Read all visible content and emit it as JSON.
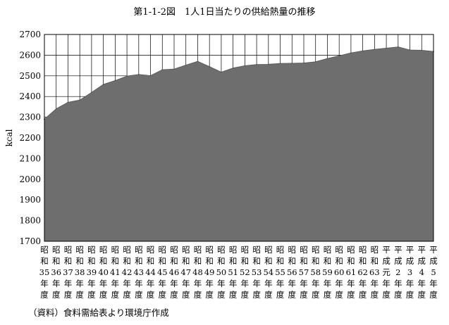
{
  "chart_data": {
    "type": "area",
    "title": "第1-1-2図　1人1日当たりの供給熱量の推移",
    "ylabel": "kcal",
    "xlabel": "",
    "ylim": [
      1700,
      2700
    ],
    "yticks": [
      1700,
      1800,
      1900,
      2000,
      2100,
      2200,
      2300,
      2400,
      2500,
      2600,
      2700
    ],
    "grid": "vertical and horizontal",
    "fill_color": "#6e6e6e",
    "categories": [
      [
        "昭",
        "和",
        "35",
        "年",
        "度"
      ],
      [
        "昭",
        "和",
        "36",
        "年",
        "度"
      ],
      [
        "昭",
        "和",
        "37",
        "年",
        "度"
      ],
      [
        "昭",
        "和",
        "38",
        "年",
        "度"
      ],
      [
        "昭",
        "和",
        "39",
        "年",
        "度"
      ],
      [
        "昭",
        "和",
        "40",
        "年",
        "度"
      ],
      [
        "昭",
        "和",
        "41",
        "年",
        "度"
      ],
      [
        "昭",
        "和",
        "42",
        "年",
        "度"
      ],
      [
        "昭",
        "和",
        "43",
        "年",
        "度"
      ],
      [
        "昭",
        "和",
        "44",
        "年",
        "度"
      ],
      [
        "昭",
        "和",
        "45",
        "年",
        "度"
      ],
      [
        "昭",
        "和",
        "46",
        "年",
        "度"
      ],
      [
        "昭",
        "和",
        "47",
        "年",
        "度"
      ],
      [
        "昭",
        "和",
        "48",
        "年",
        "度"
      ],
      [
        "昭",
        "和",
        "49",
        "年",
        "度"
      ],
      [
        "昭",
        "和",
        "50",
        "年",
        "度"
      ],
      [
        "昭",
        "和",
        "51",
        "年",
        "度"
      ],
      [
        "昭",
        "和",
        "52",
        "年",
        "度"
      ],
      [
        "昭",
        "和",
        "53",
        "年",
        "度"
      ],
      [
        "昭",
        "和",
        "54",
        "年",
        "度"
      ],
      [
        "昭",
        "和",
        "55",
        "年",
        "度"
      ],
      [
        "昭",
        "和",
        "56",
        "年",
        "度"
      ],
      [
        "昭",
        "和",
        "57",
        "年",
        "度"
      ],
      [
        "昭",
        "和",
        "58",
        "年",
        "度"
      ],
      [
        "昭",
        "和",
        "59",
        "年",
        "度"
      ],
      [
        "昭",
        "和",
        "60",
        "年",
        "度"
      ],
      [
        "昭",
        "和",
        "61",
        "年",
        "度"
      ],
      [
        "昭",
        "和",
        "62",
        "年",
        "度"
      ],
      [
        "昭",
        "和",
        "63",
        "年",
        "度"
      ],
      [
        "平",
        "成",
        "元",
        "年",
        "度"
      ],
      [
        "平",
        "成",
        "2",
        "年",
        "度"
      ],
      [
        "平",
        "成",
        "3",
        "年",
        "度"
      ],
      [
        "平",
        "成",
        "4",
        "年",
        "度"
      ],
      [
        "平",
        "成",
        "5",
        "年",
        "度"
      ]
    ],
    "values": [
      2291,
      2341,
      2372,
      2383,
      2420,
      2459,
      2477,
      2499,
      2507,
      2501,
      2530,
      2533,
      2552,
      2570,
      2545,
      2518,
      2538,
      2549,
      2555,
      2556,
      2560,
      2561,
      2562,
      2568,
      2584,
      2597,
      2611,
      2621,
      2628,
      2634,
      2640,
      2625,
      2624,
      2618
    ]
  },
  "source_note": "（資料）食料需給表より環境庁作成"
}
